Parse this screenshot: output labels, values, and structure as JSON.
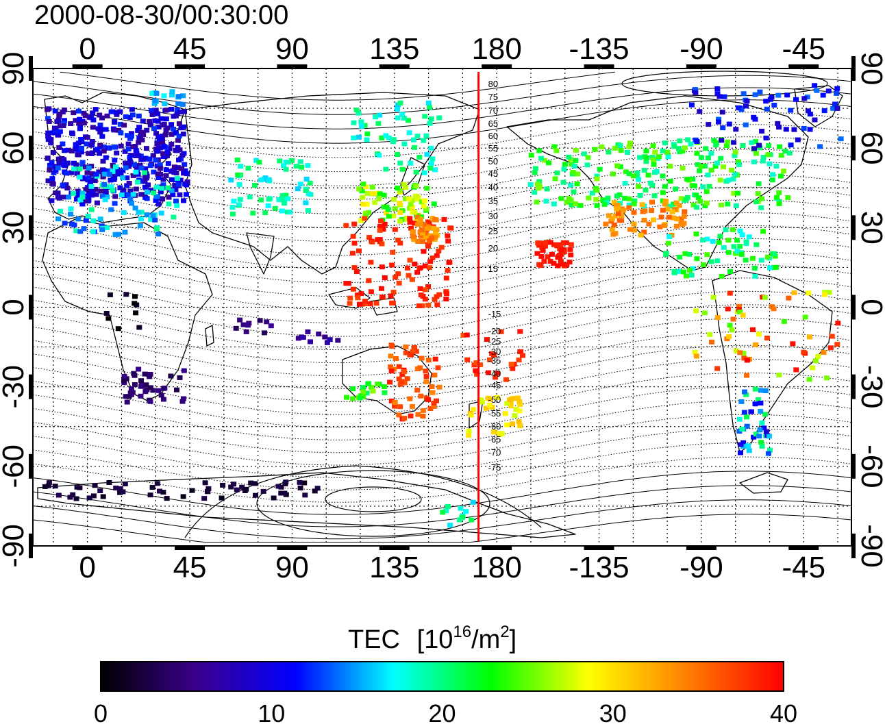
{
  "title": "2000-08-30/00:30:00",
  "lon_ticks": [
    "0",
    "45",
    "90",
    "135",
    "180",
    "-135",
    "-90",
    "-45"
  ],
  "lat_ticks": [
    "90",
    "60",
    "30",
    "0",
    "-30",
    "-60",
    "-90"
  ],
  "contour_labels": [
    "80",
    "75",
    "70",
    "65",
    "60",
    "55",
    "50",
    "45",
    "40",
    "35",
    "30",
    "25",
    "20",
    "15",
    "-15",
    "-20",
    "-25",
    "-30",
    "-35",
    "-40",
    "-45",
    "-50",
    "-55",
    "-60",
    "-65",
    "-70",
    "-75"
  ],
  "colorbar": {
    "label": "TEC",
    "unit_base": "[10",
    "unit_exp": "16",
    "unit_mid": "/m",
    "unit_exp2": "2",
    "unit_end": "]",
    "ticks": [
      "0",
      "10",
      "20",
      "30",
      "40"
    ],
    "range": [
      0,
      40
    ],
    "colors": [
      "#000000",
      "#3a0090",
      "#0000ff",
      "#00ffff",
      "#00ff00",
      "#ffff00",
      "#ff8000",
      "#ff0000"
    ]
  },
  "map": {
    "lon_range": [
      -24,
      336
    ],
    "lat_range": [
      -90,
      90
    ],
    "terminator_longitude": 172,
    "terminator_color": "#ff0000"
  }
}
